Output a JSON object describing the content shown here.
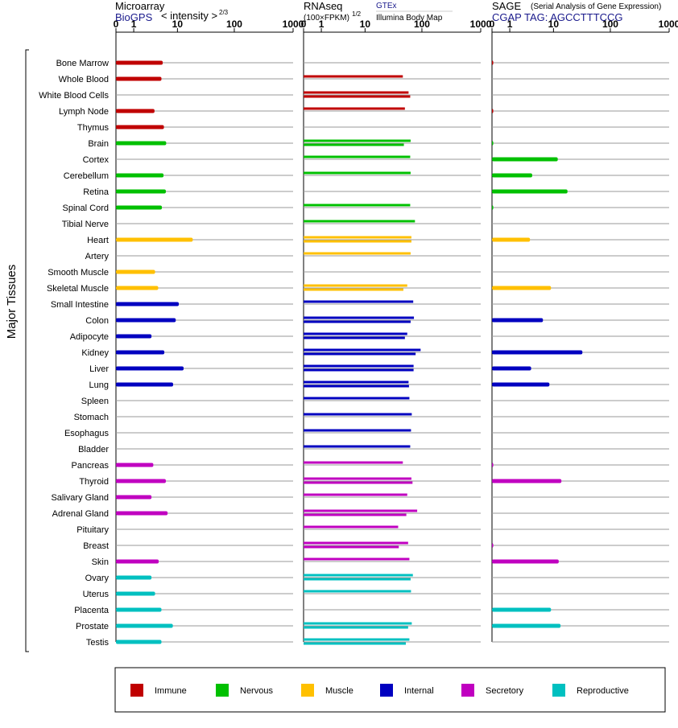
{
  "category_colors": {
    "Immune": "#c00000",
    "Nervous": "#00c000",
    "Muscle": "#ffc000",
    "Internal": "#0000c0",
    "Secretory": "#c000c0",
    "Reproductive": "#00c0c0"
  },
  "y_axis_label": "Major Tissues",
  "tissues": [
    {
      "name": "Bone Marrow",
      "category": "Immune"
    },
    {
      "name": "Whole Blood",
      "category": "Immune"
    },
    {
      "name": "White Blood Cells",
      "category": "Immune"
    },
    {
      "name": "Lymph Node",
      "category": "Immune"
    },
    {
      "name": "Thymus",
      "category": "Immune"
    },
    {
      "name": "Brain",
      "category": "Nervous"
    },
    {
      "name": "Cortex",
      "category": "Nervous"
    },
    {
      "name": "Cerebellum",
      "category": "Nervous"
    },
    {
      "name": "Retina",
      "category": "Nervous"
    },
    {
      "name": "Spinal Cord",
      "category": "Nervous"
    },
    {
      "name": "Tibial Nerve",
      "category": "Nervous"
    },
    {
      "name": "Heart",
      "category": "Muscle"
    },
    {
      "name": "Artery",
      "category": "Muscle"
    },
    {
      "name": "Smooth Muscle",
      "category": "Muscle"
    },
    {
      "name": "Skeletal Muscle",
      "category": "Muscle"
    },
    {
      "name": "Small Intestine",
      "category": "Internal"
    },
    {
      "name": "Colon",
      "category": "Internal"
    },
    {
      "name": "Adipocyte",
      "category": "Internal"
    },
    {
      "name": "Kidney",
      "category": "Internal"
    },
    {
      "name": "Liver",
      "category": "Internal"
    },
    {
      "name": "Lung",
      "category": "Internal"
    },
    {
      "name": "Spleen",
      "category": "Internal"
    },
    {
      "name": "Stomach",
      "category": "Internal"
    },
    {
      "name": "Esophagus",
      "category": "Internal"
    },
    {
      "name": "Bladder",
      "category": "Internal"
    },
    {
      "name": "Pancreas",
      "category": "Secretory"
    },
    {
      "name": "Thyroid",
      "category": "Secretory"
    },
    {
      "name": "Salivary Gland",
      "category": "Secretory"
    },
    {
      "name": "Adrenal Gland",
      "category": "Secretory"
    },
    {
      "name": "Pituitary",
      "category": "Secretory"
    },
    {
      "name": "Breast",
      "category": "Secretory"
    },
    {
      "name": "Skin",
      "category": "Secretory"
    },
    {
      "name": "Ovary",
      "category": "Reproductive"
    },
    {
      "name": "Uterus",
      "category": "Reproductive"
    },
    {
      "name": "Placenta",
      "category": "Reproductive"
    },
    {
      "name": "Prostate",
      "category": "Reproductive"
    },
    {
      "name": "Testis",
      "category": "Reproductive"
    }
  ],
  "chart_data": [
    {
      "type": "bar",
      "title": "Microarray",
      "source": "BioGPS",
      "scale_label": "< intensity >",
      "scale_exponent": "2/3",
      "xlim": [
        0,
        1000
      ],
      "x_ticks": [
        "0",
        "1",
        "10",
        "100",
        "1000"
      ],
      "values": [
        [
          5.2
        ],
        [
          4.9
        ],
        [],
        [
          3.5
        ],
        [
          5.5
        ],
        [
          6.1
        ],
        [],
        [
          5.4
        ],
        [
          6.0
        ],
        [
          5.0
        ],
        [],
        [
          19
        ],
        [],
        [
          3.6
        ],
        [
          4.2
        ],
        [
          10.6
        ],
        [
          9.3
        ],
        [
          3.0
        ],
        [
          5.6
        ],
        [
          13
        ],
        [
          8.3
        ],
        [],
        [],
        [],
        [],
        [
          3.3
        ],
        [
          6.0
        ],
        [
          3.0
        ],
        [
          6.5
        ],
        [],
        [],
        [
          4.3
        ],
        [
          3.0
        ],
        [
          3.6
        ],
        [
          4.9
        ],
        [
          8.2
        ],
        [
          4.9
        ]
      ]
    },
    {
      "type": "bar",
      "title": "RNAseq",
      "scale_label": "(100×FPKM)",
      "scale_exponent": "1/2",
      "sources": [
        "GTEx",
        "Illumina Body Map"
      ],
      "xlim": [
        0,
        1000
      ],
      "x_ticks": [
        "0",
        "1",
        "10",
        "100",
        "1000"
      ],
      "values": [
        [],
        [
          47
        ],
        [
          59,
          63
        ],
        [
          51
        ],
        [],
        [
          64,
          49
        ],
        [
          63
        ],
        [
          64
        ],
        [],
        [
          63
        ],
        [
          76
        ],
        [
          66,
          66
        ],
        [
          64
        ],
        [],
        [
          56,
          48
        ],
        [
          71
        ],
        [
          73,
          64
        ],
        [
          56,
          51
        ],
        [
          95,
          78
        ],
        [
          72,
          72
        ],
        [
          59,
          60
        ],
        [
          61
        ],
        [
          67
        ],
        [
          65
        ],
        [
          63
        ],
        [
          47
        ],
        [
          66,
          69
        ],
        [
          56
        ],
        [
          83,
          54
        ],
        [
          39
        ],
        [
          58,
          40
        ],
        [
          61
        ],
        [
          70,
          64
        ],
        [
          65
        ],
        [],
        [
          67,
          58
        ],
        [
          61,
          53
        ]
      ]
    },
    {
      "type": "bar",
      "title": "SAGE",
      "subtitle": "(Serial Analysis of Gene Expression)",
      "tag": "CGAP TAG: AGCCTTTCCG",
      "xlim": [
        0,
        1000
      ],
      "x_ticks": [
        "0",
        "1",
        "10",
        "100",
        "1000"
      ],
      "values": [
        [
          0.05
        ],
        [],
        [],
        [
          0.05
        ],
        [],
        [
          0.05
        ],
        [
          12
        ],
        [
          3.8
        ],
        [
          18
        ],
        [
          0.05
        ],
        [],
        [
          3.4
        ],
        [],
        [],
        [
          9
        ],
        [],
        [
          6.3
        ],
        [],
        [
          33
        ],
        [
          3.6
        ],
        [
          8.4
        ],
        [],
        [],
        [],
        [],
        [
          0.05
        ],
        [
          14
        ],
        [],
        [],
        [],
        [
          0.05
        ],
        [
          12.5
        ],
        [],
        [],
        [
          9
        ],
        [
          13.5
        ],
        []
      ]
    }
  ],
  "legend": [
    {
      "label": "Immune",
      "color": "#c00000"
    },
    {
      "label": "Nervous",
      "color": "#00c000"
    },
    {
      "label": "Muscle",
      "color": "#ffc000"
    },
    {
      "label": "Internal",
      "color": "#0000c0"
    },
    {
      "label": "Secretory",
      "color": "#c000c0"
    },
    {
      "label": "Reproductive",
      "color": "#00c0c0"
    }
  ]
}
